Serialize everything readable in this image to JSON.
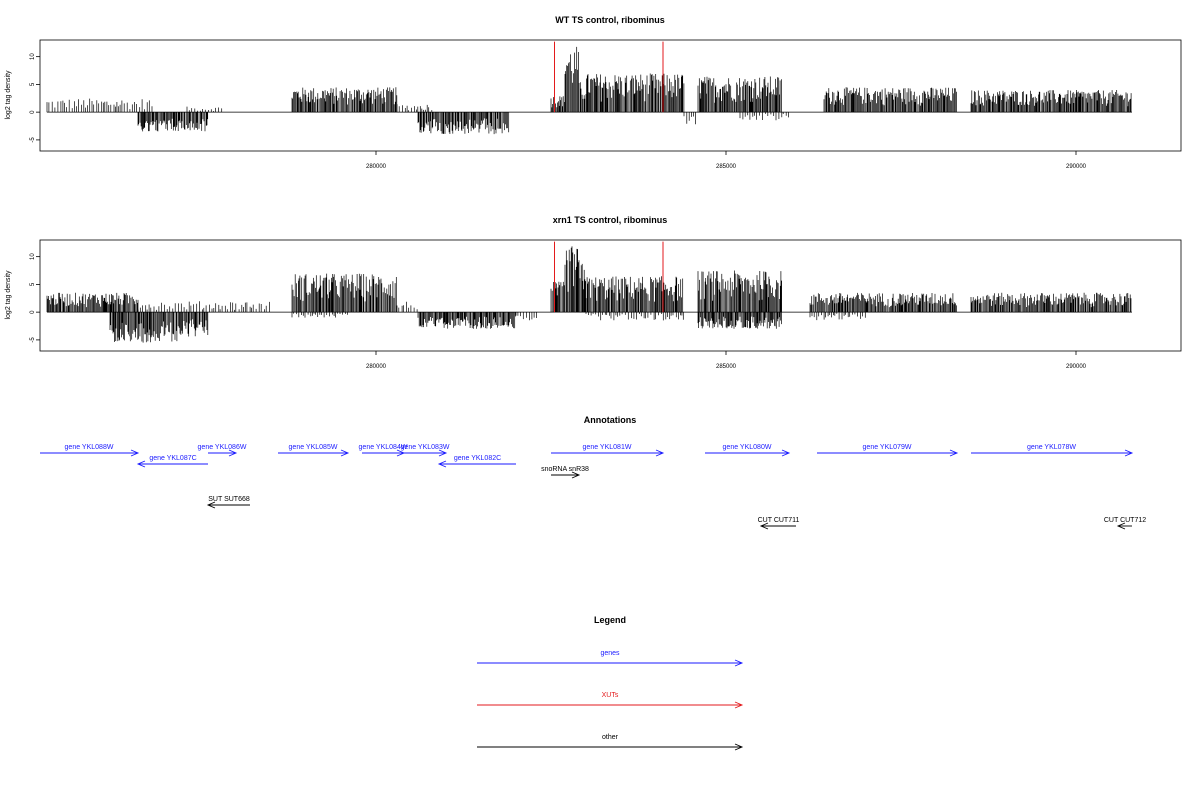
{
  "chart_data": [
    {
      "type": "bar",
      "title": "WT TS control, ribominus",
      "xlabel": "",
      "ylabel": "log2 tag density",
      "xlim": [
        275200,
        291500
      ],
      "ylim": [
        -7,
        13
      ],
      "xticks": [
        280000,
        285000,
        290000
      ],
      "yticks": [
        10,
        5,
        0,
        -5
      ],
      "grid": false,
      "series": [
        {
          "strand": "plus",
          "segments": [
            {
              "start": 275300,
              "end": 276800,
              "max": 2.5
            },
            {
              "start": 277300,
              "end": 277800,
              "max": 1.0
            },
            {
              "start": 278800,
              "end": 280300,
              "max": 4.5
            },
            {
              "start": 280300,
              "end": 280800,
              "max": 1.5
            },
            {
              "start": 282500,
              "end": 282700,
              "max": 3.0
            },
            {
              "start": 282700,
              "end": 282900,
              "max": 12.0
            },
            {
              "start": 282900,
              "end": 283000,
              "max": 5.5
            },
            {
              "start": 283000,
              "end": 284400,
              "max": 7.0
            },
            {
              "start": 284600,
              "end": 285800,
              "max": 6.5
            },
            {
              "start": 286400,
              "end": 288300,
              "max": 4.5
            },
            {
              "start": 288500,
              "end": 290800,
              "max": 4.0
            }
          ]
        },
        {
          "strand": "minus",
          "segments": [
            {
              "start": 276600,
              "end": 277600,
              "min": -3.5
            },
            {
              "start": 280600,
              "end": 281900,
              "min": -4.0
            },
            {
              "start": 284400,
              "end": 284600,
              "min": -2.5
            },
            {
              "start": 285200,
              "end": 285900,
              "min": -1.5
            }
          ]
        }
      ],
      "markers": [
        282550,
        284100
      ],
      "marker_color": "#e31a1c"
    },
    {
      "type": "bar",
      "title": "xrn1 TS control, ribominus",
      "xlabel": "",
      "ylabel": "log2 tag density",
      "xlim": [
        275200,
        291500
      ],
      "ylim": [
        -7,
        13
      ],
      "xticks": [
        280000,
        285000,
        290000
      ],
      "yticks": [
        10,
        5,
        0,
        -5
      ],
      "grid": false,
      "series": [
        {
          "strand": "plus",
          "segments": [
            {
              "start": 275300,
              "end": 276600,
              "max": 3.5
            },
            {
              "start": 276600,
              "end": 278500,
              "max": 2.0
            },
            {
              "start": 278800,
              "end": 280300,
              "max": 7.0
            },
            {
              "start": 280300,
              "end": 280600,
              "max": 2.0
            },
            {
              "start": 282500,
              "end": 282700,
              "max": 5.5
            },
            {
              "start": 282700,
              "end": 282900,
              "max": 12.0
            },
            {
              "start": 282900,
              "end": 283000,
              "max": 9.5
            },
            {
              "start": 283000,
              "end": 284400,
              "max": 6.5
            },
            {
              "start": 284600,
              "end": 285800,
              "max": 7.5
            },
            {
              "start": 286200,
              "end": 288300,
              "max": 3.5
            },
            {
              "start": 288500,
              "end": 290800,
              "max": 3.5
            }
          ]
        },
        {
          "strand": "minus",
          "segments": [
            {
              "start": 276200,
              "end": 277200,
              "min": -5.5
            },
            {
              "start": 277200,
              "end": 277600,
              "min": -4.5
            },
            {
              "start": 278800,
              "end": 279600,
              "min": -1.0
            },
            {
              "start": 280600,
              "end": 282000,
              "min": -3.0
            },
            {
              "start": 282000,
              "end": 282300,
              "min": -1.5
            },
            {
              "start": 283000,
              "end": 284400,
              "min": -1.5
            },
            {
              "start": 284600,
              "end": 285800,
              "min": -3.0
            },
            {
              "start": 286200,
              "end": 287000,
              "min": -1.5
            }
          ]
        }
      ],
      "markers": [
        282550,
        284100
      ],
      "marker_color": "#e31a1c"
    }
  ],
  "annotations": {
    "title": "Annotations",
    "features": [
      {
        "label": "gene YKL088W",
        "class": "gene",
        "start": 275200,
        "end": 276600,
        "strand": "+",
        "row": 0
      },
      {
        "label": "gene YKL087C",
        "class": "gene",
        "start": 276600,
        "end": 277600,
        "strand": "-",
        "row": 1
      },
      {
        "label": "gene YKL086W",
        "class": "gene",
        "start": 277600,
        "end": 278000,
        "strand": "+",
        "row": 0
      },
      {
        "label": "gene YKL085W",
        "class": "gene",
        "start": 278600,
        "end": 279600,
        "strand": "+",
        "row": 0
      },
      {
        "label": "gene YKL084W",
        "class": "gene",
        "start": 279800,
        "end": 280400,
        "strand": "+",
        "row": 0
      },
      {
        "label": "gene YKL083W",
        "class": "gene",
        "start": 280400,
        "end": 281000,
        "strand": "+",
        "row": 0
      },
      {
        "label": "gene YKL082C",
        "class": "gene",
        "start": 280900,
        "end": 282000,
        "strand": "-",
        "row": 1
      },
      {
        "label": "gene YKL081W",
        "class": "gene",
        "start": 282500,
        "end": 284100,
        "strand": "+",
        "row": 0
      },
      {
        "label": "gene YKL080W",
        "class": "gene",
        "start": 284700,
        "end": 285900,
        "strand": "+",
        "row": 0
      },
      {
        "label": "gene YKL079W",
        "class": "gene",
        "start": 286300,
        "end": 288300,
        "strand": "+",
        "row": 0
      },
      {
        "label": "gene YKL078W",
        "class": "gene",
        "start": 288500,
        "end": 290800,
        "strand": "+",
        "row": 0
      },
      {
        "label": "snoRNA snR38",
        "class": "other",
        "start": 282500,
        "end": 282900,
        "strand": "+",
        "row": 2
      },
      {
        "label": "SUT SUT668",
        "class": "other",
        "start": 277600,
        "end": 278200,
        "strand": "-",
        "row": 3
      },
      {
        "label": "CUT CUT711",
        "class": "other",
        "start": 285500,
        "end": 286000,
        "strand": "-",
        "row": 4
      },
      {
        "label": "CUT CUT712",
        "class": "other",
        "start": 290600,
        "end": 290800,
        "strand": "-",
        "row": 4
      }
    ]
  },
  "legend": {
    "title": "Legend",
    "items": [
      {
        "label": "genes",
        "color": "#1a1aff"
      },
      {
        "label": "XUTs",
        "color": "#e31a1c"
      },
      {
        "label": "other",
        "color": "#000000"
      }
    ]
  }
}
